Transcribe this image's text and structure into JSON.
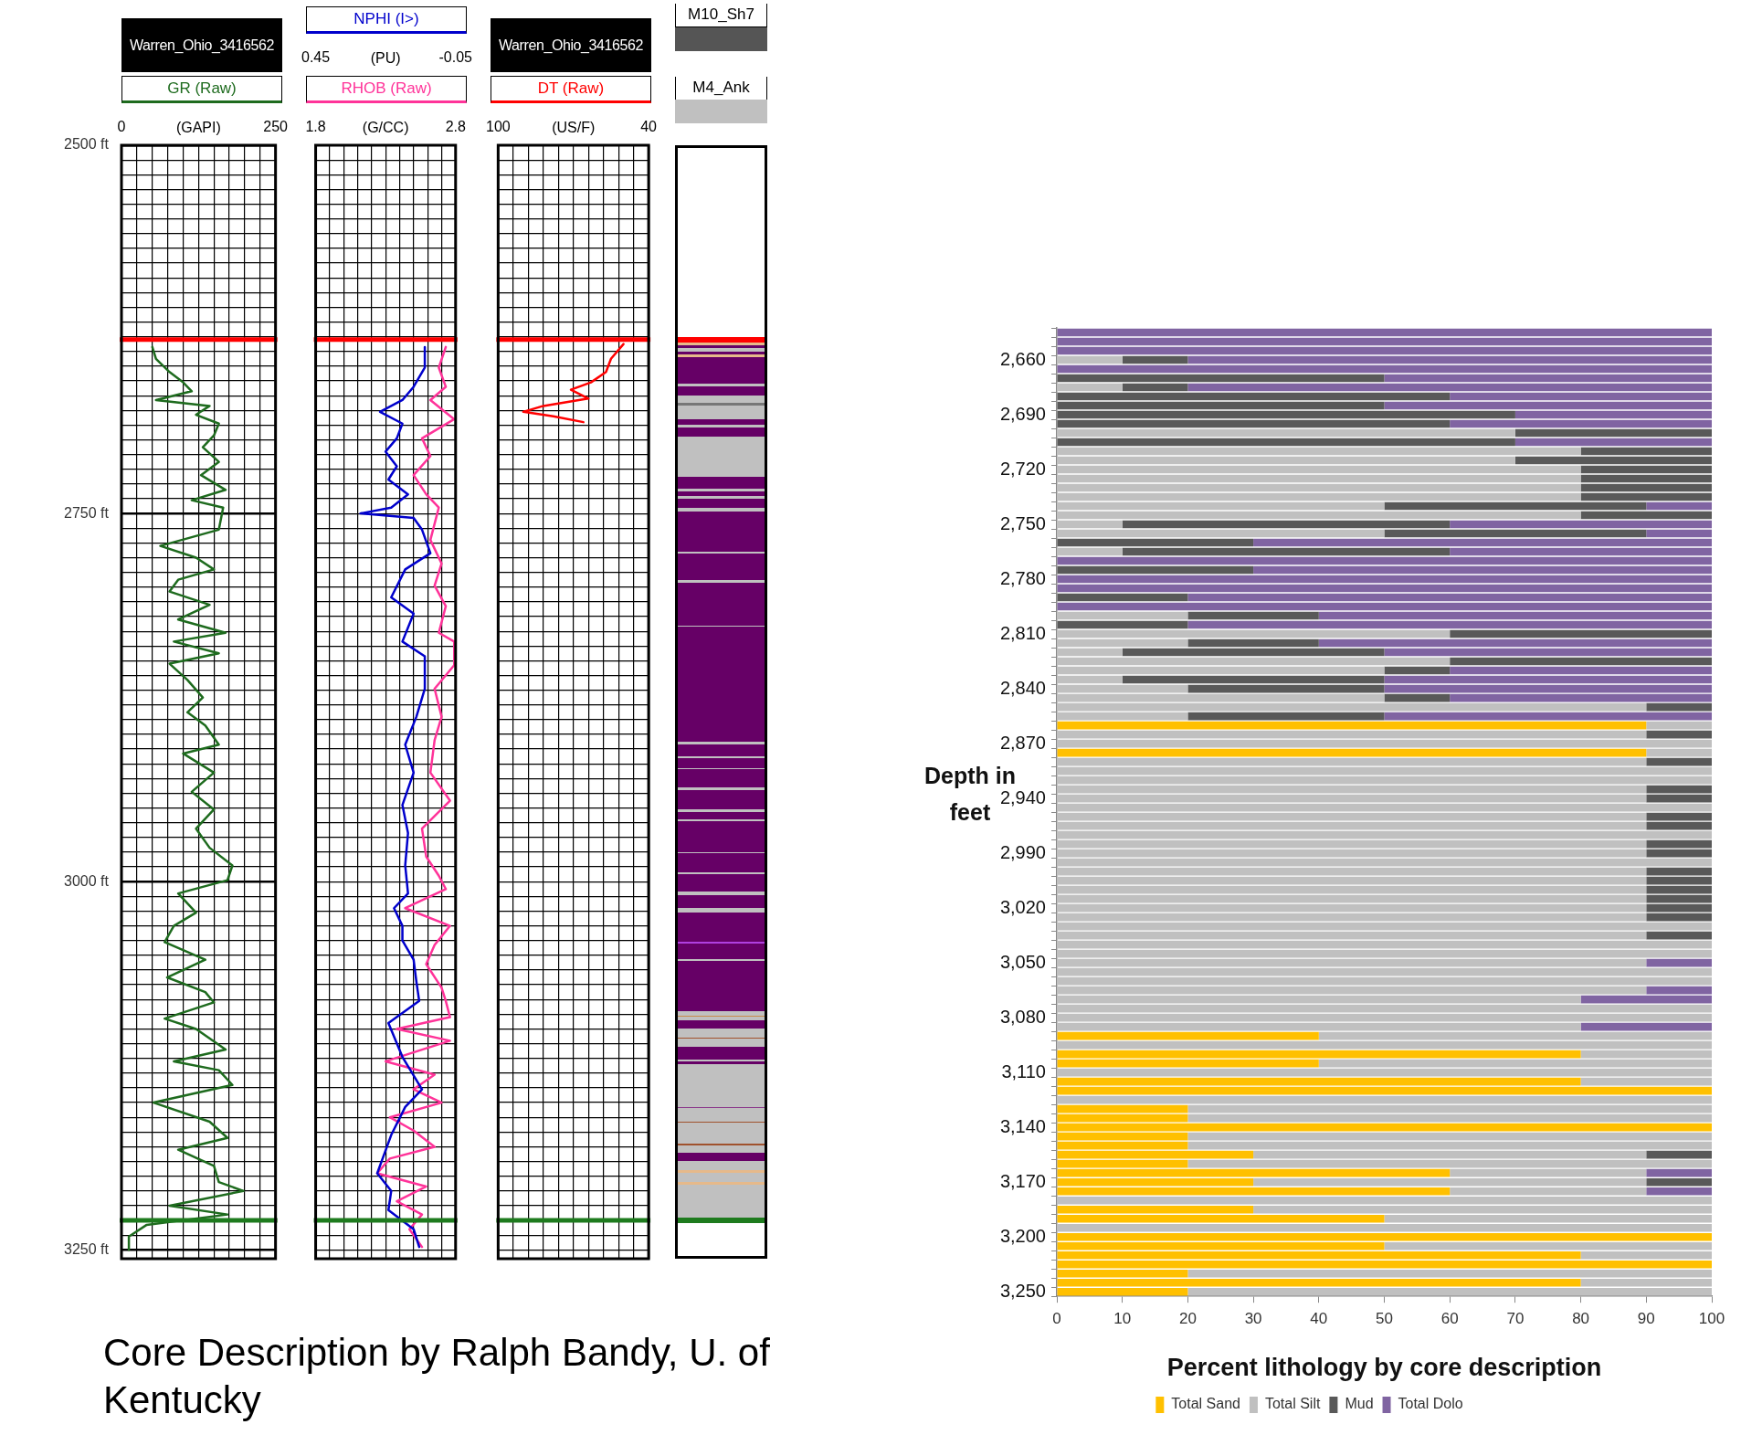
{
  "chart_data": [
    {
      "type": "line",
      "orientation": "horizontal",
      "title": "Warren_Ohio_3416562",
      "xlabel": "(GAPI)",
      "xlim": [
        0,
        250
      ],
      "xticks": [
        0,
        {
          "value": 25,
          "label": null
        },
        {
          "value": 50,
          "label": null
        },
        {
          "value": 75,
          "label": null
        },
        {
          "value": 100,
          "label": null
        },
        {
          "value": 125,
          "label": null
        },
        {
          "value": 150,
          "label": null
        },
        {
          "value": 175,
          "label": null
        },
        {
          "value": 200,
          "label": null
        },
        {
          "value": 225,
          "label": null
        },
        250
      ],
      "ylim": [
        3256,
        2500
      ],
      "yticks": [
        {
          "value": 2500,
          "label": "2500 ft"
        },
        {
          "value": 2510,
          "label": null
        },
        {
          "value": 2520,
          "label": null
        },
        {
          "value": 2530,
          "label": null
        },
        {
          "value": 2540,
          "label": null
        },
        {
          "value": 2550,
          "label": null
        },
        {
          "value": 2560,
          "label": null
        },
        {
          "value": 2570,
          "label": null
        },
        {
          "value": 2580,
          "label": null
        },
        {
          "value": 2590,
          "label": null
        },
        {
          "value": 2600,
          "label": null
        },
        {
          "value": 2610,
          "label": null
        },
        {
          "value": 2620,
          "label": null
        },
        {
          "value": 2630,
          "label": null
        },
        {
          "value": 2640,
          "label": null
        },
        {
          "value": 2650,
          "label": null
        },
        {
          "value": 2660,
          "label": null
        },
        {
          "value": 2670,
          "label": null
        },
        {
          "value": 2680,
          "label": null
        },
        {
          "value": 2690,
          "label": null
        },
        {
          "value": 2700,
          "label": null
        },
        {
          "value": 2710,
          "label": null
        },
        {
          "value": 2720,
          "label": null
        },
        {
          "value": 2730,
          "label": null
        },
        {
          "value": 2740,
          "label": null
        },
        {
          "value": 2750,
          "label": "2750 ft"
        },
        {
          "value": 2760,
          "label": null
        },
        {
          "value": 2770,
          "label": null
        },
        {
          "value": 2780,
          "label": null
        },
        {
          "value": 2790,
          "label": null
        },
        {
          "value": 2800,
          "label": null
        },
        {
          "value": 2810,
          "label": null
        },
        {
          "value": 2820,
          "label": null
        },
        {
          "value": 2830,
          "label": null
        },
        {
          "value": 2840,
          "label": null
        },
        {
          "value": 2850,
          "label": null
        },
        {
          "value": 2860,
          "label": null
        },
        {
          "value": 2870,
          "label": null
        },
        {
          "value": 2880,
          "label": null
        },
        {
          "value": 2890,
          "label": null
        },
        {
          "value": 2900,
          "label": null
        },
        {
          "value": 2910,
          "label": null
        },
        {
          "value": 2920,
          "label": null
        },
        {
          "value": 2930,
          "label": null
        },
        {
          "value": 2940,
          "label": null
        },
        {
          "value": 2950,
          "label": null
        },
        {
          "value": 2960,
          "label": null
        },
        {
          "value": 2970,
          "label": null
        },
        {
          "value": 2980,
          "label": null
        },
        {
          "value": 2990,
          "label": null
        },
        {
          "value": 3000,
          "label": "3000 ft"
        },
        {
          "value": 3010,
          "label": null
        },
        {
          "value": 3020,
          "label": null
        },
        {
          "value": 3030,
          "label": null
        },
        {
          "value": 3040,
          "label": null
        },
        {
          "value": 3050,
          "label": null
        },
        {
          "value": 3060,
          "label": null
        },
        {
          "value": 3070,
          "label": null
        },
        {
          "value": 3080,
          "label": null
        },
        {
          "value": 3090,
          "label": null
        },
        {
          "value": 3100,
          "label": null
        },
        {
          "value": 3110,
          "label": null
        },
        {
          "value": 3120,
          "label": null
        },
        {
          "value": 3130,
          "label": null
        },
        {
          "value": 3140,
          "label": null
        },
        {
          "value": 3150,
          "label": null
        },
        {
          "value": 3160,
          "label": null
        },
        {
          "value": 3170,
          "label": null
        },
        {
          "value": 3180,
          "label": null
        },
        {
          "value": 3190,
          "label": null
        },
        {
          "value": 3200,
          "label": null
        },
        {
          "value": 3210,
          "label": null
        },
        {
          "value": 3220,
          "label": null
        },
        {
          "value": 3230,
          "label": null
        },
        {
          "value": 3240,
          "label": null
        },
        {
          "value": 3250,
          "label": "3250 ft"
        }
      ],
      "grid": true,
      "legend": "top",
      "annotations": [
        "Core Description by Ralph Bandy, U. of Kentucky"
      ],
      "ref_lines": [
        {
          "axis": "y",
          "value": 2632,
          "color": "#ff0000"
        },
        {
          "axis": "y",
          "value": 3230,
          "color": "#1e7b1e"
        }
      ],
      "series": [
        {
          "name": "GR (Raw)",
          "color": "#1e6b1e",
          "x": [
            2637,
            2645,
            2654,
            2661,
            2667,
            2673,
            2677,
            2683,
            2689,
            2697,
            2705,
            2715,
            2724,
            2734,
            2741,
            2746,
            2761,
            2772,
            2780,
            2788,
            2795,
            2803,
            2812,
            2822,
            2831,
            2837,
            2845,
            2852,
            2863,
            2875,
            2885,
            2894,
            2907,
            2913,
            2926,
            2939,
            2951,
            2964,
            2977,
            2989,
            2999,
            3008,
            3021,
            3030,
            3041,
            3053,
            3065,
            3075,
            3082,
            3093,
            3100,
            3114,
            3122,
            3128,
            3138,
            3150,
            3163,
            3174,
            3182,
            3193,
            3204,
            3210,
            3220,
            3226,
            3233,
            3241,
            3250
          ],
          "values": [
            50,
            56,
            78,
            100,
            114,
            56,
            143,
            121,
            158,
            150,
            132,
            158,
            129,
            169,
            114,
            165,
            158,
            63,
            121,
            150,
            92,
            78,
            143,
            92,
            169,
            85,
            158,
            78,
            107,
            132,
            107,
            136,
            158,
            100,
            150,
            114,
            150,
            121,
            143,
            180,
            172,
            92,
            121,
            85,
            70,
            136,
            74,
            136,
            150,
            70,
            121,
            169,
            85,
            158,
            180,
            52,
            143,
            172,
            92,
            150,
            158,
            198,
            78,
            172,
            41,
            12,
            12
          ]
        }
      ]
    },
    {
      "type": "line",
      "orientation": "horizontal",
      "xlabel": "(G/CC)",
      "xlim": [
        1.8,
        2.8
      ],
      "xticks": [
        1.8,
        {
          "value": 1.9,
          "label": null
        },
        {
          "value": 2.0,
          "label": null
        },
        {
          "value": 2.1,
          "label": null
        },
        {
          "value": 2.2,
          "label": null
        },
        {
          "value": 2.3,
          "label": null
        },
        {
          "value": 2.4,
          "label": null
        },
        {
          "value": 2.5,
          "label": null
        },
        {
          "value": 2.6,
          "label": null
        },
        {
          "value": 2.7,
          "label": null
        },
        2.8
      ],
      "x2label": "(PU)",
      "x2lim": [
        0.45,
        -0.05
      ],
      "x2ticks": [
        0.45,
        -0.05
      ],
      "ylim": [
        3256,
        2500
      ],
      "yticks": [
        {
          "value": 2500,
          "label": null
        },
        {
          "value": 2510,
          "label": null
        },
        {
          "value": 2520,
          "label": null
        },
        {
          "value": 2530,
          "label": null
        },
        {
          "value": 2540,
          "label": null
        },
        {
          "value": 2550,
          "label": null
        },
        {
          "value": 2560,
          "label": null
        },
        {
          "value": 2570,
          "label": null
        },
        {
          "value": 2580,
          "label": null
        },
        {
          "value": 2590,
          "label": null
        },
        {
          "value": 2600,
          "label": null
        },
        {
          "value": 2610,
          "label": null
        },
        {
          "value": 2620,
          "label": null
        },
        {
          "value": 2630,
          "label": null
        },
        {
          "value": 2640,
          "label": null
        },
        {
          "value": 2650,
          "label": null
        },
        {
          "value": 2660,
          "label": null
        },
        {
          "value": 2670,
          "label": null
        },
        {
          "value": 2680,
          "label": null
        },
        {
          "value": 2690,
          "label": null
        },
        {
          "value": 2700,
          "label": null
        },
        {
          "value": 2710,
          "label": null
        },
        {
          "value": 2720,
          "label": null
        },
        {
          "value": 2730,
          "label": null
        },
        {
          "value": 2740,
          "label": null
        },
        {
          "value": 2750,
          "label": null
        },
        {
          "value": 2760,
          "label": null
        },
        {
          "value": 2770,
          "label": null
        },
        {
          "value": 2780,
          "label": null
        },
        {
          "value": 2790,
          "label": null
        },
        {
          "value": 2800,
          "label": null
        },
        {
          "value": 2810,
          "label": null
        },
        {
          "value": 2820,
          "label": null
        },
        {
          "value": 2830,
          "label": null
        },
        {
          "value": 2840,
          "label": null
        },
        {
          "value": 2850,
          "label": null
        },
        {
          "value": 2860,
          "label": null
        },
        {
          "value": 2870,
          "label": null
        },
        {
          "value": 2880,
          "label": null
        },
        {
          "value": 2890,
          "label": null
        },
        {
          "value": 2900,
          "label": null
        },
        {
          "value": 2910,
          "label": null
        },
        {
          "value": 2920,
          "label": null
        },
        {
          "value": 2930,
          "label": null
        },
        {
          "value": 2940,
          "label": null
        },
        {
          "value": 2950,
          "label": null
        },
        {
          "value": 2960,
          "label": null
        },
        {
          "value": 2970,
          "label": null
        },
        {
          "value": 2980,
          "label": null
        },
        {
          "value": 2990,
          "label": null
        },
        {
          "value": 3000,
          "label": null
        },
        {
          "value": 3010,
          "label": null
        },
        {
          "value": 3020,
          "label": null
        },
        {
          "value": 3030,
          "label": null
        },
        {
          "value": 3040,
          "label": null
        },
        {
          "value": 3050,
          "label": null
        },
        {
          "value": 3060,
          "label": null
        },
        {
          "value": 3070,
          "label": null
        },
        {
          "value": 3080,
          "label": null
        },
        {
          "value": 3090,
          "label": null
        },
        {
          "value": 3100,
          "label": null
        },
        {
          "value": 3110,
          "label": null
        },
        {
          "value": 3120,
          "label": null
        },
        {
          "value": 3130,
          "label": null
        },
        {
          "value": 3140,
          "label": null
        },
        {
          "value": 3150,
          "label": null
        },
        {
          "value": 3160,
          "label": null
        },
        {
          "value": 3170,
          "label": null
        },
        {
          "value": 3180,
          "label": null
        },
        {
          "value": 3190,
          "label": null
        },
        {
          "value": 3200,
          "label": null
        },
        {
          "value": 3210,
          "label": null
        },
        {
          "value": 3220,
          "label": null
        },
        {
          "value": 3230,
          "label": null
        },
        {
          "value": 3240,
          "label": null
        },
        {
          "value": 3250,
          "label": null
        }
      ],
      "grid": true,
      "legend": "top",
      "tick_labels": "x",
      "ref_lines": [
        {
          "axis": "y",
          "value": 2632,
          "color": "#ff0000"
        },
        {
          "axis": "y",
          "value": 3230,
          "color": "#1e7b1e"
        }
      ],
      "series": [
        {
          "name": "NPHI (I>)",
          "color": "#0000cc",
          "axis": "x2",
          "x": [
            2637,
            2651,
            2664,
            2673,
            2681,
            2689,
            2699,
            2708,
            2718,
            2727,
            2737,
            2746,
            2750,
            2753,
            2761,
            2777,
            2788,
            2807,
            2818,
            2837,
            2847,
            2869,
            2888,
            2907,
            2926,
            2948,
            2967,
            2989,
            3008,
            3018,
            3030,
            3040,
            3053,
            3068,
            3081,
            3096,
            3119,
            3141,
            3153,
            3172,
            3198,
            3210,
            3223,
            3236,
            3248
          ],
          "values": [
            0.06,
            0.06,
            0.1,
            0.14,
            0.22,
            0.14,
            0.16,
            0.2,
            0.16,
            0.19,
            0.12,
            0.18,
            0.29,
            0.1,
            0.07,
            0.04,
            0.13,
            0.18,
            0.1,
            0.14,
            0.06,
            0.06,
            0.09,
            0.13,
            0.1,
            0.14,
            0.12,
            0.13,
            0.12,
            0.17,
            0.14,
            0.14,
            0.1,
            0.09,
            0.08,
            0.19,
            0.14,
            0.07,
            0.13,
            0.18,
            0.23,
            0.18,
            0.19,
            0.1,
            0.08
          ]
        },
        {
          "name": "RHOB (Raw)",
          "color": "#ff3399",
          "x": [
            2637,
            2651,
            2664,
            2673,
            2686,
            2699,
            2711,
            2724,
            2737,
            2746,
            2768,
            2784,
            2799,
            2813,
            2831,
            2837,
            2853,
            2869,
            2888,
            2904,
            2926,
            2945,
            2964,
            2983,
            2996,
            3005,
            3018,
            3030,
            3043,
            3056,
            3072,
            3081,
            3092,
            3100,
            3108,
            3122,
            3131,
            3141,
            3150,
            3160,
            3169,
            3180,
            3188,
            3198,
            3207,
            3217,
            3226,
            3236,
            3248
          ],
          "values": [
            2.73,
            2.68,
            2.73,
            2.62,
            2.79,
            2.56,
            2.62,
            2.5,
            2.59,
            2.68,
            2.62,
            2.7,
            2.65,
            2.73,
            2.68,
            2.79,
            2.79,
            2.65,
            2.7,
            2.65,
            2.62,
            2.76,
            2.56,
            2.59,
            2.68,
            2.73,
            2.44,
            2.76,
            2.65,
            2.59,
            2.7,
            2.73,
            2.76,
            2.38,
            2.76,
            2.3,
            2.65,
            2.5,
            2.7,
            2.33,
            2.5,
            2.65,
            2.33,
            2.24,
            2.59,
            2.38,
            2.56,
            2.47,
            2.56
          ]
        }
      ]
    },
    {
      "type": "line",
      "orientation": "horizontal",
      "title": "Warren_Ohio_3416562",
      "xlabel": "(US/F)",
      "xlim": [
        100,
        40
      ],
      "xticks": [
        100,
        {
          "value": 94,
          "label": null
        },
        {
          "value": 88,
          "label": null
        },
        {
          "value": 82,
          "label": null
        },
        {
          "value": 76,
          "label": null
        },
        {
          "value": 70,
          "label": null
        },
        {
          "value": 64,
          "label": null
        },
        {
          "value": 58,
          "label": null
        },
        {
          "value": 52,
          "label": null
        },
        {
          "value": 46,
          "label": null
        },
        40
      ],
      "ylim": [
        3256,
        2500
      ],
      "yticks": [
        {
          "value": 2500,
          "label": null
        },
        {
          "value": 2510,
          "label": null
        },
        {
          "value": 2520,
          "label": null
        },
        {
          "value": 2530,
          "label": null
        },
        {
          "value": 2540,
          "label": null
        },
        {
          "value": 2550,
          "label": null
        },
        {
          "value": 2560,
          "label": null
        },
        {
          "value": 2570,
          "label": null
        },
        {
          "value": 2580,
          "label": null
        },
        {
          "value": 2590,
          "label": null
        },
        {
          "value": 2600,
          "label": null
        },
        {
          "value": 2610,
          "label": null
        },
        {
          "value": 2620,
          "label": null
        },
        {
          "value": 2630,
          "label": null
        },
        {
          "value": 2640,
          "label": null
        },
        {
          "value": 2650,
          "label": null
        },
        {
          "value": 2660,
          "label": null
        },
        {
          "value": 2670,
          "label": null
        },
        {
          "value": 2680,
          "label": null
        },
        {
          "value": 2690,
          "label": null
        },
        {
          "value": 2700,
          "label": null
        },
        {
          "value": 2710,
          "label": null
        },
        {
          "value": 2720,
          "label": null
        },
        {
          "value": 2730,
          "label": null
        },
        {
          "value": 2740,
          "label": null
        },
        {
          "value": 2750,
          "label": null
        },
        {
          "value": 2760,
          "label": null
        },
        {
          "value": 2770,
          "label": null
        },
        {
          "value": 2780,
          "label": null
        },
        {
          "value": 2790,
          "label": null
        },
        {
          "value": 2800,
          "label": null
        },
        {
          "value": 2810,
          "label": null
        },
        {
          "value": 2820,
          "label": null
        },
        {
          "value": 2830,
          "label": null
        },
        {
          "value": 2840,
          "label": null
        },
        {
          "value": 2850,
          "label": null
        },
        {
          "value": 2860,
          "label": null
        },
        {
          "value": 2870,
          "label": null
        },
        {
          "value": 2880,
          "label": null
        },
        {
          "value": 2890,
          "label": null
        },
        {
          "value": 2900,
          "label": null
        },
        {
          "value": 2910,
          "label": null
        },
        {
          "value": 2920,
          "label": null
        },
        {
          "value": 2930,
          "label": null
        },
        {
          "value": 2940,
          "label": null
        },
        {
          "value": 2950,
          "label": null
        },
        {
          "value": 2960,
          "label": null
        },
        {
          "value": 2970,
          "label": null
        },
        {
          "value": 2980,
          "label": null
        },
        {
          "value": 2990,
          "label": null
        },
        {
          "value": 3000,
          "label": null
        },
        {
          "value": 3010,
          "label": null
        },
        {
          "value": 3020,
          "label": null
        },
        {
          "value": 3030,
          "label": null
        },
        {
          "value": 3040,
          "label": null
        },
        {
          "value": 3050,
          "label": null
        },
        {
          "value": 3060,
          "label": null
        },
        {
          "value": 3070,
          "label": null
        },
        {
          "value": 3080,
          "label": null
        },
        {
          "value": 3090,
          "label": null
        },
        {
          "value": 3100,
          "label": null
        },
        {
          "value": 3110,
          "label": null
        },
        {
          "value": 3120,
          "label": null
        },
        {
          "value": 3130,
          "label": null
        },
        {
          "value": 3140,
          "label": null
        },
        {
          "value": 3150,
          "label": null
        },
        {
          "value": 3160,
          "label": null
        },
        {
          "value": 3170,
          "label": null
        },
        {
          "value": 3180,
          "label": null
        },
        {
          "value": 3190,
          "label": null
        },
        {
          "value": 3200,
          "label": null
        },
        {
          "value": 3210,
          "label": null
        },
        {
          "value": 3220,
          "label": null
        },
        {
          "value": 3230,
          "label": null
        },
        {
          "value": 3240,
          "label": null
        },
        {
          "value": 3250,
          "label": null
        }
      ],
      "grid": true,
      "legend": "top",
      "tick_labels": "x",
      "ref_lines": [
        {
          "axis": "y",
          "value": 2632,
          "color": "#ff0000"
        },
        {
          "axis": "y",
          "value": 3230,
          "color": "#1e7b1e"
        }
      ],
      "series": [
        {
          "name": "DT (Raw)",
          "color": "#ff0000",
          "x": [
            2635,
            2645,
            2654,
            2661,
            2666,
            2672,
            2677,
            2681,
            2684,
            2688
          ],
          "values": [
            50,
            55,
            57,
            63,
            71,
            64,
            82,
            90,
            78,
            66
          ]
        }
      ]
    },
    {
      "type": "other",
      "annotations": [
        "M10_Sh7",
        "M4_Ank"
      ]
    },
    {
      "type": "bar",
      "orientation": "horizontal",
      "stacked": true,
      "xlabel": "Percent lithology by core description",
      "ylabel": "Depth in feet",
      "xlim": [
        0,
        100
      ],
      "xticks": [
        0,
        10,
        20,
        30,
        40,
        50,
        60,
        70,
        80,
        90,
        100
      ],
      "legend": "bottom",
      "categories": [
        null,
        null,
        null,
        "2,660",
        null,
        null,
        null,
        null,
        null,
        "2,690",
        null,
        null,
        null,
        null,
        null,
        "2,720",
        null,
        null,
        null,
        null,
        null,
        "2,750",
        null,
        null,
        null,
        null,
        null,
        "2,780",
        null,
        null,
        null,
        null,
        null,
        "2,810",
        null,
        null,
        null,
        null,
        null,
        "2,840",
        null,
        null,
        null,
        null,
        null,
        "2,870",
        null,
        null,
        null,
        null,
        null,
        "2,940",
        null,
        null,
        null,
        null,
        null,
        "2,990",
        null,
        null,
        null,
        null,
        null,
        "3,020",
        null,
        null,
        null,
        null,
        null,
        "3,050",
        null,
        null,
        null,
        null,
        null,
        "3,080",
        null,
        null,
        null,
        null,
        null,
        "3,110",
        null,
        null,
        null,
        null,
        null,
        "3,140",
        null,
        null,
        null,
        null,
        null,
        "3,170",
        null,
        null,
        null,
        null,
        null,
        "3,200",
        null,
        null,
        null,
        null,
        null,
        "3,250"
      ],
      "series": [
        {
          "name": "Total Sand",
          "color": "#ffc000",
          "values": [
            0,
            0,
            0,
            0,
            0,
            0,
            0,
            0,
            0,
            0,
            0,
            0,
            0,
            0,
            0,
            0,
            0,
            0,
            0,
            0,
            0,
            0,
            0,
            0,
            0,
            0,
            0,
            0,
            0,
            0,
            0,
            0,
            0,
            0,
            0,
            0,
            0,
            0,
            0,
            0,
            0,
            0,
            0,
            90,
            0,
            0,
            90,
            0,
            0,
            0,
            0,
            0,
            0,
            0,
            0,
            0,
            0,
            0,
            0,
            0,
            0,
            0,
            0,
            0,
            0,
            0,
            0,
            0,
            0,
            0,
            0,
            0,
            0,
            0,
            0,
            0,
            0,
            40,
            0,
            80,
            40,
            0,
            80,
            100,
            0,
            20,
            20,
            100,
            20,
            20,
            30,
            20,
            60,
            30,
            60,
            0,
            30,
            50,
            0,
            100,
            50,
            80,
            100,
            20,
            80,
            20
          ]
        },
        {
          "name": "Total Silt",
          "color": "#c0c0c0",
          "values": [
            0,
            0,
            0,
            10,
            0,
            0,
            10,
            0,
            0,
            0,
            0,
            70,
            0,
            80,
            70,
            80,
            80,
            80,
            80,
            50,
            80,
            10,
            50,
            0,
            10,
            0,
            0,
            0,
            0,
            0,
            0,
            20,
            0,
            60,
            20,
            10,
            60,
            50,
            10,
            20,
            50,
            90,
            20,
            10,
            90,
            100,
            10,
            90,
            100,
            100,
            90,
            90,
            100,
            90,
            90,
            100,
            90,
            90,
            100,
            90,
            90,
            90,
            90,
            90,
            90,
            100,
            90,
            100,
            100,
            90,
            100,
            100,
            90,
            80,
            100,
            100,
            80,
            60,
            100,
            20,
            60,
            100,
            20,
            0,
            100,
            80,
            80,
            0,
            80,
            80,
            60,
            80,
            30,
            60,
            30,
            100,
            70,
            50,
            100,
            0,
            50,
            20,
            0,
            80,
            20,
            80
          ]
        },
        {
          "name": "Mud",
          "color": "#595959",
          "values": [
            0,
            0,
            0,
            10,
            0,
            50,
            10,
            60,
            50,
            70,
            60,
            30,
            70,
            20,
            30,
            20,
            20,
            20,
            20,
            40,
            20,
            50,
            40,
            30,
            50,
            0,
            30,
            0,
            0,
            20,
            0,
            20,
            20,
            40,
            20,
            40,
            40,
            10,
            40,
            30,
            10,
            10,
            30,
            0,
            10,
            0,
            0,
            10,
            0,
            0,
            10,
            10,
            0,
            10,
            10,
            0,
            10,
            10,
            0,
            10,
            10,
            10,
            10,
            10,
            10,
            0,
            10,
            0,
            0,
            0,
            0,
            0,
            0,
            0,
            0,
            0,
            0,
            0,
            0,
            0,
            0,
            0,
            0,
            0,
            0,
            0,
            0,
            0,
            0,
            0,
            10,
            0,
            0,
            10,
            0,
            0,
            0,
            0,
            0,
            0,
            0,
            0,
            0,
            0,
            0,
            0
          ]
        },
        {
          "name": "Total Dolo",
          "color": "#8064a2",
          "values": [
            100,
            100,
            100,
            80,
            100,
            50,
            80,
            40,
            50,
            30,
            40,
            0,
            30,
            0,
            0,
            0,
            0,
            0,
            0,
            10,
            0,
            40,
            10,
            70,
            40,
            100,
            70,
            100,
            100,
            80,
            100,
            60,
            80,
            0,
            60,
            50,
            0,
            40,
            50,
            50,
            40,
            0,
            50,
            0,
            0,
            0,
            0,
            0,
            0,
            0,
            0,
            0,
            0,
            0,
            0,
            0,
            0,
            0,
            0,
            0,
            0,
            0,
            0,
            0,
            0,
            0,
            0,
            0,
            0,
            10,
            0,
            0,
            10,
            20,
            0,
            0,
            20,
            0,
            0,
            0,
            0,
            0,
            0,
            0,
            0,
            0,
            0,
            0,
            0,
            0,
            0,
            0,
            10,
            0,
            10,
            0,
            0,
            0,
            0,
            0,
            0,
            0,
            0,
            0,
            0,
            0
          ]
        }
      ]
    }
  ]
}
